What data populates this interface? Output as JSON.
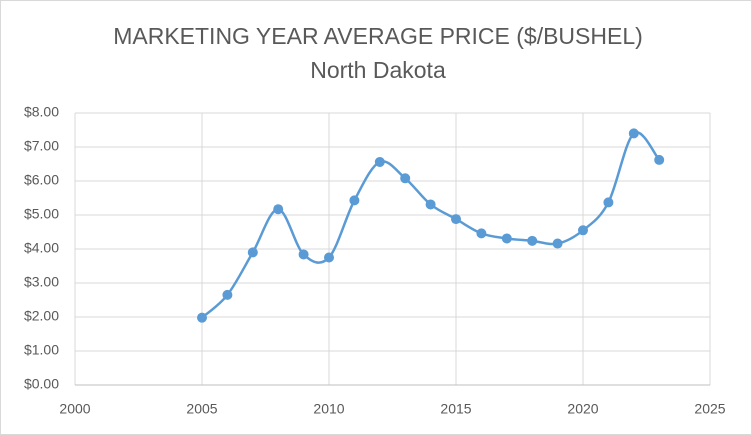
{
  "chart_data": {
    "type": "line",
    "title": "MARKETING YEAR AVERAGE PRICE ($/BUSHEL)",
    "subtitle": "North Dakota",
    "x": [
      2005,
      2006,
      2007,
      2008,
      2009,
      2010,
      2011,
      2012,
      2013,
      2014,
      2015,
      2016,
      2017,
      2018,
      2019,
      2020,
      2021,
      2022,
      2023
    ],
    "series": [
      {
        "name": "North Dakota",
        "color": "#5b9bd5",
        "values": [
          1.98,
          2.65,
          3.9,
          5.17,
          3.84,
          3.75,
          5.43,
          6.56,
          6.08,
          5.31,
          4.88,
          4.46,
          4.31,
          4.24,
          4.16,
          4.55,
          5.37,
          7.4,
          6.62
        ]
      }
    ],
    "xlim": [
      2000,
      2025
    ],
    "xticks": [
      2000,
      2005,
      2010,
      2015,
      2020,
      2025
    ],
    "ylim": [
      0,
      8
    ],
    "yticks": [
      {
        "value": 0,
        "label": "$0.00"
      },
      {
        "value": 1,
        "label": "$1.00"
      },
      {
        "value": 2,
        "label": "$2.00"
      },
      {
        "value": 3,
        "label": "$3.00"
      },
      {
        "value": 4,
        "label": "$4.00"
      },
      {
        "value": 5,
        "label": "$5.00"
      },
      {
        "value": 6,
        "label": "$6.00"
      },
      {
        "value": 7,
        "label": "$7.00"
      },
      {
        "value": 8,
        "label": "$8.00"
      }
    ],
    "grid": true,
    "smooth": true
  }
}
